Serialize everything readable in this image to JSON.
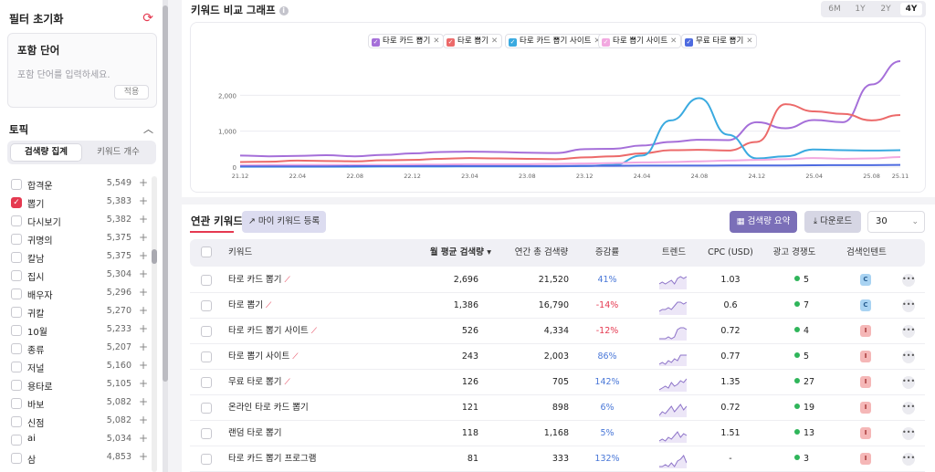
{
  "filter": {
    "title": "필터 초기화",
    "reset_icon": "refresh-icon",
    "include_title": "포함 단어",
    "include_placeholder": "포함 단어를 입력하세요.",
    "apply_label": "적용",
    "topic_title": "토픽",
    "seg_search": "검색량 집계",
    "seg_keywords": "키워드 개수",
    "topics": [
      {
        "label": "합격운",
        "count": "5,549",
        "checked": false
      },
      {
        "label": "뽑기",
        "count": "5,383",
        "checked": true
      },
      {
        "label": "다시보기",
        "count": "5,382",
        "checked": false
      },
      {
        "label": "귀명의",
        "count": "5,375",
        "checked": false
      },
      {
        "label": "칼남",
        "count": "5,375",
        "checked": false
      },
      {
        "label": "집시",
        "count": "5,304",
        "checked": false
      },
      {
        "label": "배우자",
        "count": "5,296",
        "checked": false
      },
      {
        "label": "귀칼",
        "count": "5,270",
        "checked": false
      },
      {
        "label": "10월",
        "count": "5,233",
        "checked": false
      },
      {
        "label": "종류",
        "count": "5,207",
        "checked": false
      },
      {
        "label": "저널",
        "count": "5,160",
        "checked": false
      },
      {
        "label": "용타로",
        "count": "5,105",
        "checked": false
      },
      {
        "label": "바보",
        "count": "5,082",
        "checked": false
      },
      {
        "label": "신점",
        "count": "5,082",
        "checked": false
      },
      {
        "label": "ai",
        "count": "5,034",
        "checked": false
      },
      {
        "label": "삼",
        "count": "4,853",
        "checked": false
      }
    ]
  },
  "chart_header": {
    "title": "키워드 비교 그래프",
    "ranges": [
      "6M",
      "1Y",
      "2Y",
      "4Y"
    ],
    "active_range": "4Y"
  },
  "chart_data": {
    "type": "line",
    "x": [
      "21.12",
      "22.02",
      "22.04",
      "22.06",
      "22.08",
      "22.10",
      "22.12",
      "23.02",
      "23.04",
      "23.06",
      "23.08",
      "23.10",
      "23.12",
      "24.02",
      "24.04",
      "24.06",
      "24.08",
      "24.10",
      "24.12",
      "25.02",
      "25.04",
      "25.06",
      "25.08",
      "25.11"
    ],
    "xticks": [
      "21.12",
      "22.04",
      "22.08",
      "22.12",
      "23.04",
      "23.08",
      "23.12",
      "24.04",
      "24.08",
      "24.12",
      "25.04",
      "25.08",
      "25.11"
    ],
    "yticks": [
      "0",
      "1,000",
      "2,000"
    ],
    "ylim": [
      0,
      3000
    ],
    "grid": true,
    "legend_position": "top",
    "series": [
      {
        "name": "타로 카드 뽑기",
        "color": "#a56fd9",
        "values": [
          320,
          300,
          310,
          330,
          300,
          340,
          380,
          420,
          430,
          420,
          400,
          390,
          500,
          510,
          600,
          700,
          760,
          750,
          1250,
          1080,
          1310,
          1250,
          2300,
          2950
        ]
      },
      {
        "name": "타로 뽑기",
        "color": "#ec6a6a",
        "values": [
          140,
          150,
          180,
          170,
          160,
          190,
          200,
          230,
          250,
          240,
          230,
          220,
          270,
          300,
          380,
          470,
          480,
          460,
          700,
          1750,
          1550,
          1480,
          1300,
          1450
        ]
      },
      {
        "name": "타로 카드 뽑기 사이트",
        "color": "#3aaae0",
        "values": [
          10,
          10,
          10,
          10,
          10,
          15,
          15,
          15,
          20,
          20,
          20,
          20,
          30,
          60,
          320,
          1300,
          1920,
          900,
          240,
          300,
          490,
          470,
          460,
          470
        ]
      },
      {
        "name": "타로 뽑기 사이트",
        "color": "#f2a8e0",
        "values": [
          50,
          60,
          60,
          60,
          60,
          60,
          70,
          70,
          80,
          80,
          80,
          90,
          100,
          110,
          130,
          140,
          160,
          180,
          200,
          220,
          250,
          230,
          240,
          280
        ]
      },
      {
        "name": "무료 타로 뽑기",
        "color": "#4e6be0",
        "values": [
          20,
          20,
          20,
          20,
          25,
          25,
          25,
          30,
          30,
          30,
          30,
          30,
          35,
          35,
          40,
          40,
          40,
          45,
          45,
          45,
          50,
          55,
          55,
          60
        ]
      }
    ]
  },
  "related": {
    "tab_label": "연관 키워드",
    "my_keyword_button": "마이 키워드 등록",
    "summary_button": "검색량 요약",
    "download_button": "다운로드",
    "page_size": "30",
    "columns": [
      "키워드",
      "월 평균 검색량",
      "연간 총 검색량",
      "증감률",
      "트렌드",
      "CPC (USD)",
      "광고 경쟁도",
      "검색인텐트"
    ],
    "rows": [
      {
        "keyword": "타로 카드 뽑기",
        "trend_icon": true,
        "monthly": "2,696",
        "annual": "21,520",
        "change": "41%",
        "dir": "up",
        "cpc": "1.03",
        "comp": "5",
        "intent": "C"
      },
      {
        "keyword": "타로 뽑기",
        "trend_icon": true,
        "monthly": "1,386",
        "annual": "16,790",
        "change": "-14%",
        "dir": "down",
        "cpc": "0.6",
        "comp": "7",
        "intent": "C"
      },
      {
        "keyword": "타로 카드 뽑기 사이트",
        "trend_icon": true,
        "monthly": "526",
        "annual": "4,334",
        "change": "-12%",
        "dir": "down",
        "cpc": "0.72",
        "comp": "4",
        "intent": "I"
      },
      {
        "keyword": "타로 뽑기 사이트",
        "trend_icon": true,
        "monthly": "243",
        "annual": "2,003",
        "change": "86%",
        "dir": "up",
        "cpc": "0.77",
        "comp": "5",
        "intent": "I"
      },
      {
        "keyword": "무료 타로 뽑기",
        "trend_icon": true,
        "monthly": "126",
        "annual": "705",
        "change": "142%",
        "dir": "up",
        "cpc": "1.35",
        "comp": "27",
        "intent": "I"
      },
      {
        "keyword": "온라인 타로 카드 뽑기",
        "trend_icon": false,
        "monthly": "121",
        "annual": "898",
        "change": "6%",
        "dir": "up",
        "cpc": "0.72",
        "comp": "19",
        "intent": "I"
      },
      {
        "keyword": "랜덤 타로 뽑기",
        "trend_icon": false,
        "monthly": "118",
        "annual": "1,168",
        "change": "5%",
        "dir": "up",
        "cpc": "1.51",
        "comp": "13",
        "intent": "I"
      },
      {
        "keyword": "타로 카드 뽑기 프로그램",
        "trend_icon": false,
        "monthly": "81",
        "annual": "333",
        "change": "132%",
        "dir": "up",
        "cpc": "-",
        "comp": "3",
        "intent": "I"
      }
    ]
  }
}
